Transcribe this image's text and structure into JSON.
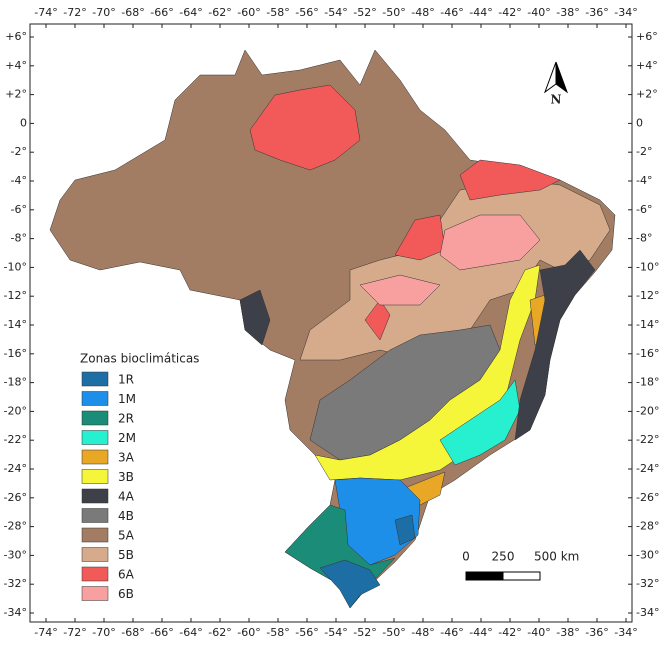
{
  "legend": {
    "title": "Zonas bioclimáticas",
    "items": [
      {
        "label": "1R",
        "color": "#1c6ea4"
      },
      {
        "label": "1M",
        "color": "#1e8fe8"
      },
      {
        "label": "2R",
        "color": "#1a8c78"
      },
      {
        "label": "2M",
        "color": "#26f0d0"
      },
      {
        "label": "3A",
        "color": "#e8a825"
      },
      {
        "label": "3B",
        "color": "#f5f53a"
      },
      {
        "label": "4A",
        "color": "#3d4048"
      },
      {
        "label": "4B",
        "color": "#7a7a7a"
      },
      {
        "label": "5A",
        "color": "#a27c63"
      },
      {
        "label": "5B",
        "color": "#d5ab8b"
      },
      {
        "label": "6A",
        "color": "#f25a5a"
      },
      {
        "label": "6B",
        "color": "#f8a0a0"
      }
    ]
  },
  "axes": {
    "x_ticks": [
      {
        "value": -74,
        "label": "-74°"
      },
      {
        "value": -72,
        "label": "-72°"
      },
      {
        "value": -70,
        "label": "-70°"
      },
      {
        "value": -68,
        "label": "-68°"
      },
      {
        "value": -66,
        "label": "-66°"
      },
      {
        "value": -64,
        "label": "-64°"
      },
      {
        "value": -62,
        "label": "-62°"
      },
      {
        "value": -60,
        "label": "-60°"
      },
      {
        "value": -58,
        "label": "-58°"
      },
      {
        "value": -56,
        "label": "-56°"
      },
      {
        "value": -54,
        "label": "-54°"
      },
      {
        "value": -52,
        "label": "-52°"
      },
      {
        "value": -50,
        "label": "-50°"
      },
      {
        "value": -48,
        "label": "-48°"
      },
      {
        "value": -46,
        "label": "-46°"
      },
      {
        "value": -44,
        "label": "-44°"
      },
      {
        "value": -42,
        "label": "-42°"
      },
      {
        "value": -40,
        "label": "-40°"
      },
      {
        "value": -38,
        "label": "-38°"
      },
      {
        "value": -36,
        "label": "-36°"
      },
      {
        "value": -34,
        "label": "-34°"
      }
    ],
    "y_ticks": [
      {
        "value": 6,
        "label": "+6°"
      },
      {
        "value": 4,
        "label": "+4°"
      },
      {
        "value": 2,
        "label": "+2°"
      },
      0,
      {
        "value": -2,
        "label": "-2°"
      },
      {
        "value": -4,
        "label": "-4°"
      },
      {
        "value": -6,
        "label": "-6°"
      },
      {
        "value": -8,
        "label": "-8°"
      },
      {
        "value": -10,
        "label": "-10°"
      },
      {
        "value": -12,
        "label": "-12°"
      },
      {
        "value": -14,
        "label": "-14°"
      },
      {
        "value": -16,
        "label": "-16°"
      },
      {
        "value": -18,
        "label": "-18°"
      },
      {
        "value": -20,
        "label": "-20°"
      },
      {
        "value": -22,
        "label": "-22°"
      },
      {
        "value": -24,
        "label": "-24°"
      },
      {
        "value": -26,
        "label": "-26°"
      },
      {
        "value": -28,
        "label": "-28°"
      },
      {
        "value": -30,
        "label": "-30°"
      },
      {
        "value": -32,
        "label": "-32°"
      },
      {
        "value": -34,
        "label": "-34°"
      }
    ]
  },
  "scale_bar": {
    "labels": [
      "0",
      "250",
      "500 km"
    ]
  },
  "north_arrow": {
    "label": "N"
  }
}
